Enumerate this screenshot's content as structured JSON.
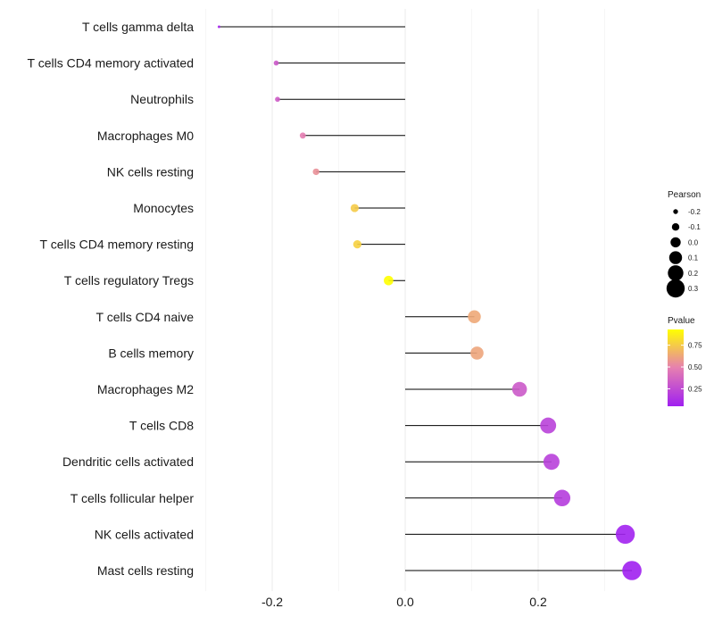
{
  "chart_data": {
    "type": "lollipop",
    "title": "",
    "xlabel": "",
    "ylabel": "",
    "xlim": [
      -0.3,
      0.34
    ],
    "x_ticks": [
      -0.2,
      0.0,
      0.2
    ],
    "x_tick_labels": [
      "-0.2",
      "0.0",
      "0.2"
    ],
    "grid": true,
    "categories": [
      "T cells gamma delta",
      "T cells CD4 memory activated",
      "Neutrophils",
      "Macrophages M0",
      "NK cells resting",
      "Monocytes",
      "T cells CD4 memory resting",
      "T cells regulatory  Tregs",
      "T cells CD4 naive",
      "B cells memory",
      "Macrophages M2",
      "T cells CD8",
      "Dendritic cells activated",
      "T cells follicular helper",
      "NK cells activated",
      "Mast cells resting"
    ],
    "pearson": [
      -0.28,
      -0.194,
      -0.192,
      -0.154,
      -0.134,
      -0.076,
      -0.072,
      -0.025,
      0.104,
      0.108,
      0.172,
      0.215,
      0.22,
      0.236,
      0.331,
      0.341
    ],
    "pvalue": [
      0.08,
      0.32,
      0.33,
      0.48,
      0.55,
      0.75,
      0.77,
      0.93,
      0.63,
      0.62,
      0.32,
      0.21,
      0.2,
      0.18,
      0.06,
      0.05
    ],
    "legend_size": {
      "title": "Pearson",
      "labels": [
        "-0.2",
        "-0.1",
        "0.0",
        "0.1",
        "0.2",
        "0.3"
      ],
      "values": [
        -0.2,
        -0.1,
        0.0,
        0.1,
        0.2,
        0.3
      ]
    },
    "legend_color": {
      "title": "Pvalue",
      "labels": [
        "0.75",
        "0.50",
        "0.25"
      ],
      "values": [
        0.75,
        0.5,
        0.25
      ],
      "range": [
        0.05,
        0.93
      ],
      "colors": {
        "low": "#a020f0",
        "mid": "#e67fb0",
        "high": "#ffff00"
      }
    }
  }
}
